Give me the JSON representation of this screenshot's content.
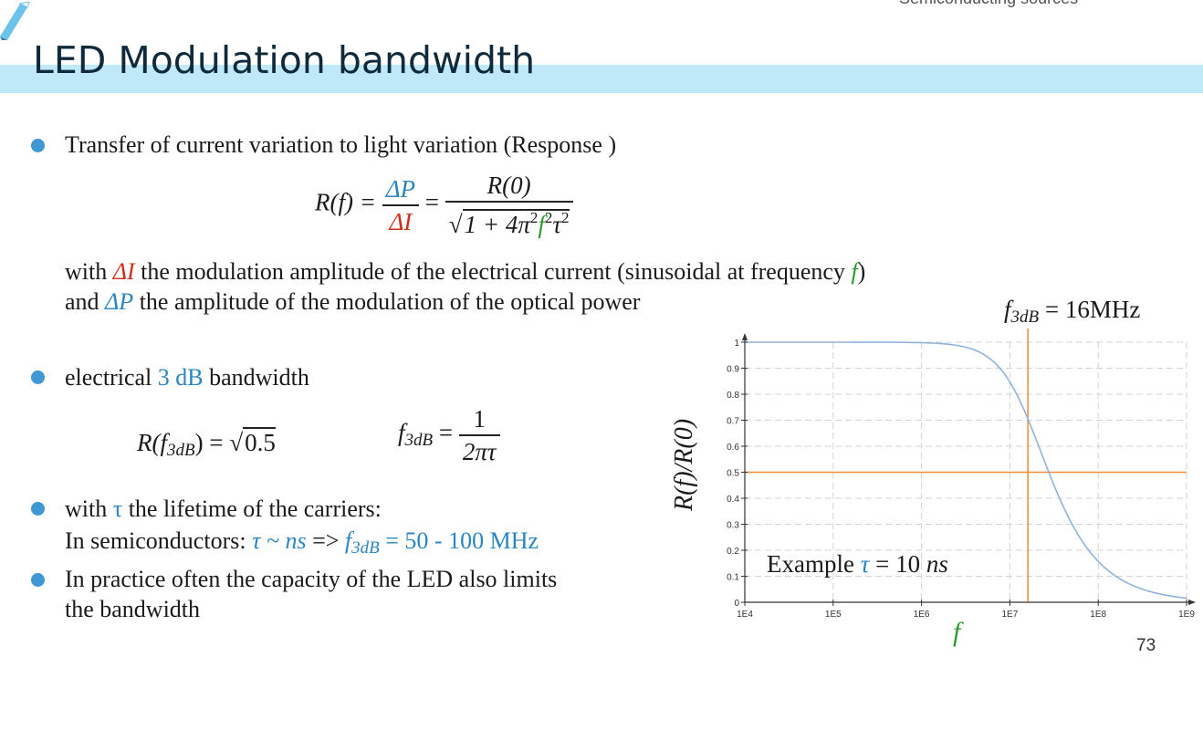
{
  "header": {
    "title": "LED Modulation bandwidth",
    "corner_note": "Semiconducting sources",
    "page_number": "73"
  },
  "bullets": {
    "b1": "Transfer of current variation to light variation (Response )",
    "eq1_lhs": "R(f) =",
    "eq1_num1": "ΔP",
    "eq1_den1": "ΔI",
    "eq1_eq": "=",
    "eq1_num2": "R(0)",
    "eq1_den2_root": "1 + 4π",
    "eq1_den2_f": "f",
    "eq1_den2_tau": "τ",
    "sup2": "2",
    "with_line": {
      "p1": "with ",
      "dI": "ΔI",
      "p2": " the modulation amplitude of the electrical current (sinusoidal at frequency ",
      "f": "f",
      "p3": ")"
    },
    "and_line": {
      "p1": "and ",
      "dP": "ΔP",
      "p2": " the amplitude of the modulation of the optical power"
    },
    "b2": {
      "p1": "electrical ",
      "hl": "3 dB",
      "p2": " bandwidth"
    },
    "eq2_lhs": "R(f",
    "eq2_sub": "3dB",
    "eq2_mid": ") = √",
    "eq2_root": "0.5",
    "eq3_f": "f",
    "eq3_sub": "3dB",
    "eq3_eq": " =",
    "eq3_num": "1",
    "eq3_den": "2πτ",
    "b3": {
      "p1": "with ",
      "tau": "τ",
      "p2": " the lifetime of the carriers:"
    },
    "b3_line2": {
      "p1": "In semiconductors: ",
      "hl1": "τ ~ ns",
      "p2": " => ",
      "f": "f",
      "sub": "3dB",
      "hl2": " = 50 - 100 MHz"
    },
    "b4_line1": "In practice often the capacity of the LED also limits",
    "b4_line2": "the bandwidth"
  },
  "chart_data": {
    "type": "line",
    "title": "f3dB = 16MHz",
    "title_f": "f",
    "title_sub": "3dB",
    "title_rest": " = 16MHz",
    "xlabel": "f",
    "ylabel": "R(f)/R(0)",
    "x_scale": "log",
    "xlim": [
      10000,
      1000000000
    ],
    "ylim": [
      0,
      1
    ],
    "x_ticks": [
      "1E4",
      "1E5",
      "1E6",
      "1E7",
      "1E8",
      "1E9"
    ],
    "y_ticks": [
      "0",
      "0.1",
      "0.2",
      "0.3",
      "0.4",
      "0.5",
      "0.6",
      "0.7",
      "0.8",
      "0.9",
      "1"
    ],
    "grid": true,
    "annotation": "Example τ = 10 ns",
    "annotation_parts": {
      "p1": "Example ",
      "tau": "τ",
      "p2": " = 10 ",
      "unit": "ns"
    },
    "tau_seconds": 1e-08,
    "cutoff_frequency": 16000000,
    "cutoff_level": 0.5,
    "series": [
      {
        "formula": "R(f)/R(0) = 1 / sqrt(1 + 4π²f²τ²)",
        "x": [
          10000,
          100000,
          1000000,
          3000000,
          10000000,
          16000000,
          30000000,
          100000000,
          300000000,
          1000000000
        ],
        "y": [
          1.0,
          1.0,
          0.998,
          0.983,
          0.847,
          0.705,
          0.469,
          0.157,
          0.053,
          0.016
        ]
      }
    ],
    "colors": {
      "curve": "#8fb3dc",
      "marker": "#f08a3c",
      "grid": "#d3d3d3"
    }
  }
}
